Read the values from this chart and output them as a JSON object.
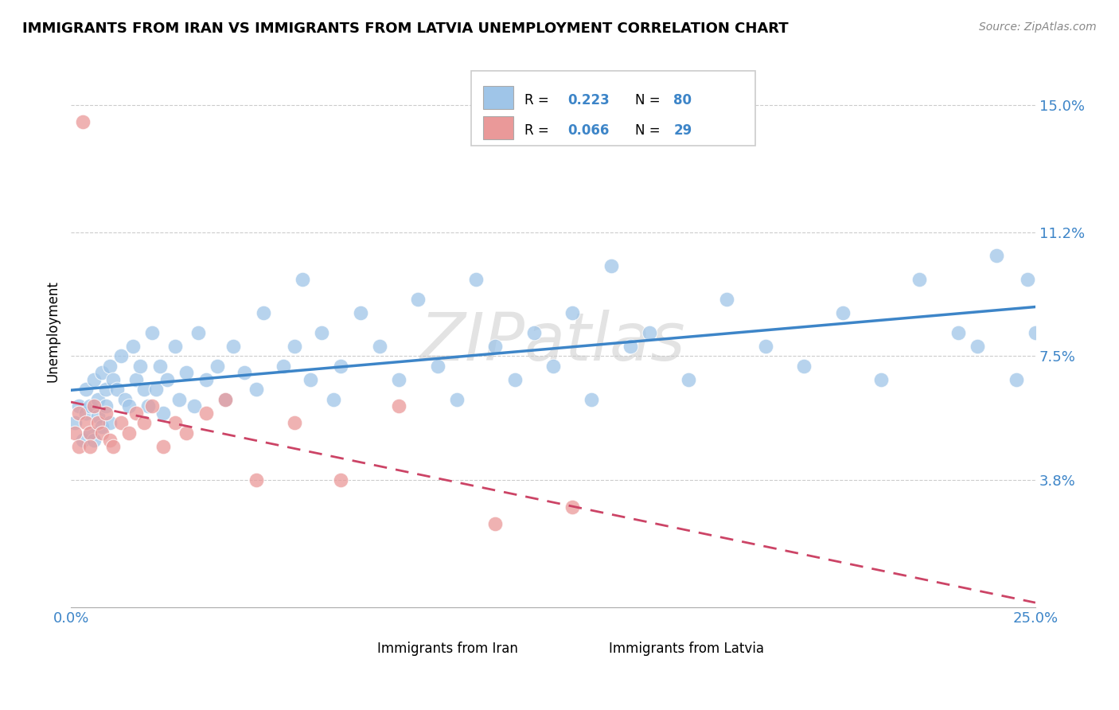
{
  "title": "IMMIGRANTS FROM IRAN VS IMMIGRANTS FROM LATVIA UNEMPLOYMENT CORRELATION CHART",
  "source": "Source: ZipAtlas.com",
  "ylabel": "Unemployment",
  "xlim": [
    0.0,
    0.25
  ],
  "ylim": [
    0.0,
    0.165
  ],
  "yticks": [
    0.038,
    0.075,
    0.112,
    0.15
  ],
  "ytick_labels": [
    "3.8%",
    "7.5%",
    "11.2%",
    "15.0%"
  ],
  "xtick_labels": [
    "0.0%",
    "25.0%"
  ],
  "legend_label1": "Immigrants from Iran",
  "legend_label2": "Immigrants from Latvia",
  "color_iran": "#9fc5e8",
  "color_latvia": "#ea9999",
  "color_iran_line": "#3d85c8",
  "color_latvia_line": "#cc4466",
  "color_text_blue": "#3d85c8",
  "iran_x": [
    0.001,
    0.002,
    0.003,
    0.004,
    0.004,
    0.005,
    0.005,
    0.006,
    0.006,
    0.007,
    0.007,
    0.008,
    0.008,
    0.009,
    0.009,
    0.01,
    0.01,
    0.011,
    0.012,
    0.013,
    0.014,
    0.015,
    0.016,
    0.017,
    0.018,
    0.019,
    0.02,
    0.021,
    0.022,
    0.023,
    0.024,
    0.025,
    0.027,
    0.028,
    0.03,
    0.032,
    0.033,
    0.035,
    0.038,
    0.04,
    0.042,
    0.045,
    0.048,
    0.05,
    0.055,
    0.058,
    0.06,
    0.062,
    0.065,
    0.068,
    0.07,
    0.075,
    0.08,
    0.085,
    0.09,
    0.095,
    0.1,
    0.105,
    0.11,
    0.115,
    0.12,
    0.125,
    0.13,
    0.135,
    0.14,
    0.145,
    0.15,
    0.16,
    0.17,
    0.18,
    0.19,
    0.2,
    0.21,
    0.22,
    0.23,
    0.235,
    0.24,
    0.245,
    0.248,
    0.25
  ],
  "iran_y": [
    0.055,
    0.06,
    0.05,
    0.058,
    0.065,
    0.052,
    0.06,
    0.05,
    0.068,
    0.057,
    0.062,
    0.054,
    0.07,
    0.06,
    0.065,
    0.072,
    0.055,
    0.068,
    0.065,
    0.075,
    0.062,
    0.06,
    0.078,
    0.068,
    0.072,
    0.065,
    0.06,
    0.082,
    0.065,
    0.072,
    0.058,
    0.068,
    0.078,
    0.062,
    0.07,
    0.06,
    0.082,
    0.068,
    0.072,
    0.062,
    0.078,
    0.07,
    0.065,
    0.088,
    0.072,
    0.078,
    0.098,
    0.068,
    0.082,
    0.062,
    0.072,
    0.088,
    0.078,
    0.068,
    0.092,
    0.072,
    0.062,
    0.098,
    0.078,
    0.068,
    0.082,
    0.072,
    0.088,
    0.062,
    0.102,
    0.078,
    0.082,
    0.068,
    0.092,
    0.078,
    0.072,
    0.088,
    0.068,
    0.098,
    0.082,
    0.078,
    0.105,
    0.068,
    0.098,
    0.082
  ],
  "latvia_x": [
    0.001,
    0.002,
    0.002,
    0.003,
    0.004,
    0.005,
    0.005,
    0.006,
    0.007,
    0.008,
    0.009,
    0.01,
    0.011,
    0.013,
    0.015,
    0.017,
    0.019,
    0.021,
    0.024,
    0.027,
    0.03,
    0.035,
    0.04,
    0.048,
    0.058,
    0.07,
    0.085,
    0.11,
    0.13
  ],
  "latvia_y": [
    0.052,
    0.058,
    0.048,
    0.145,
    0.055,
    0.052,
    0.048,
    0.06,
    0.055,
    0.052,
    0.058,
    0.05,
    0.048,
    0.055,
    0.052,
    0.058,
    0.055,
    0.06,
    0.048,
    0.055,
    0.052,
    0.058,
    0.062,
    0.038,
    0.055,
    0.038,
    0.06,
    0.025,
    0.03
  ]
}
